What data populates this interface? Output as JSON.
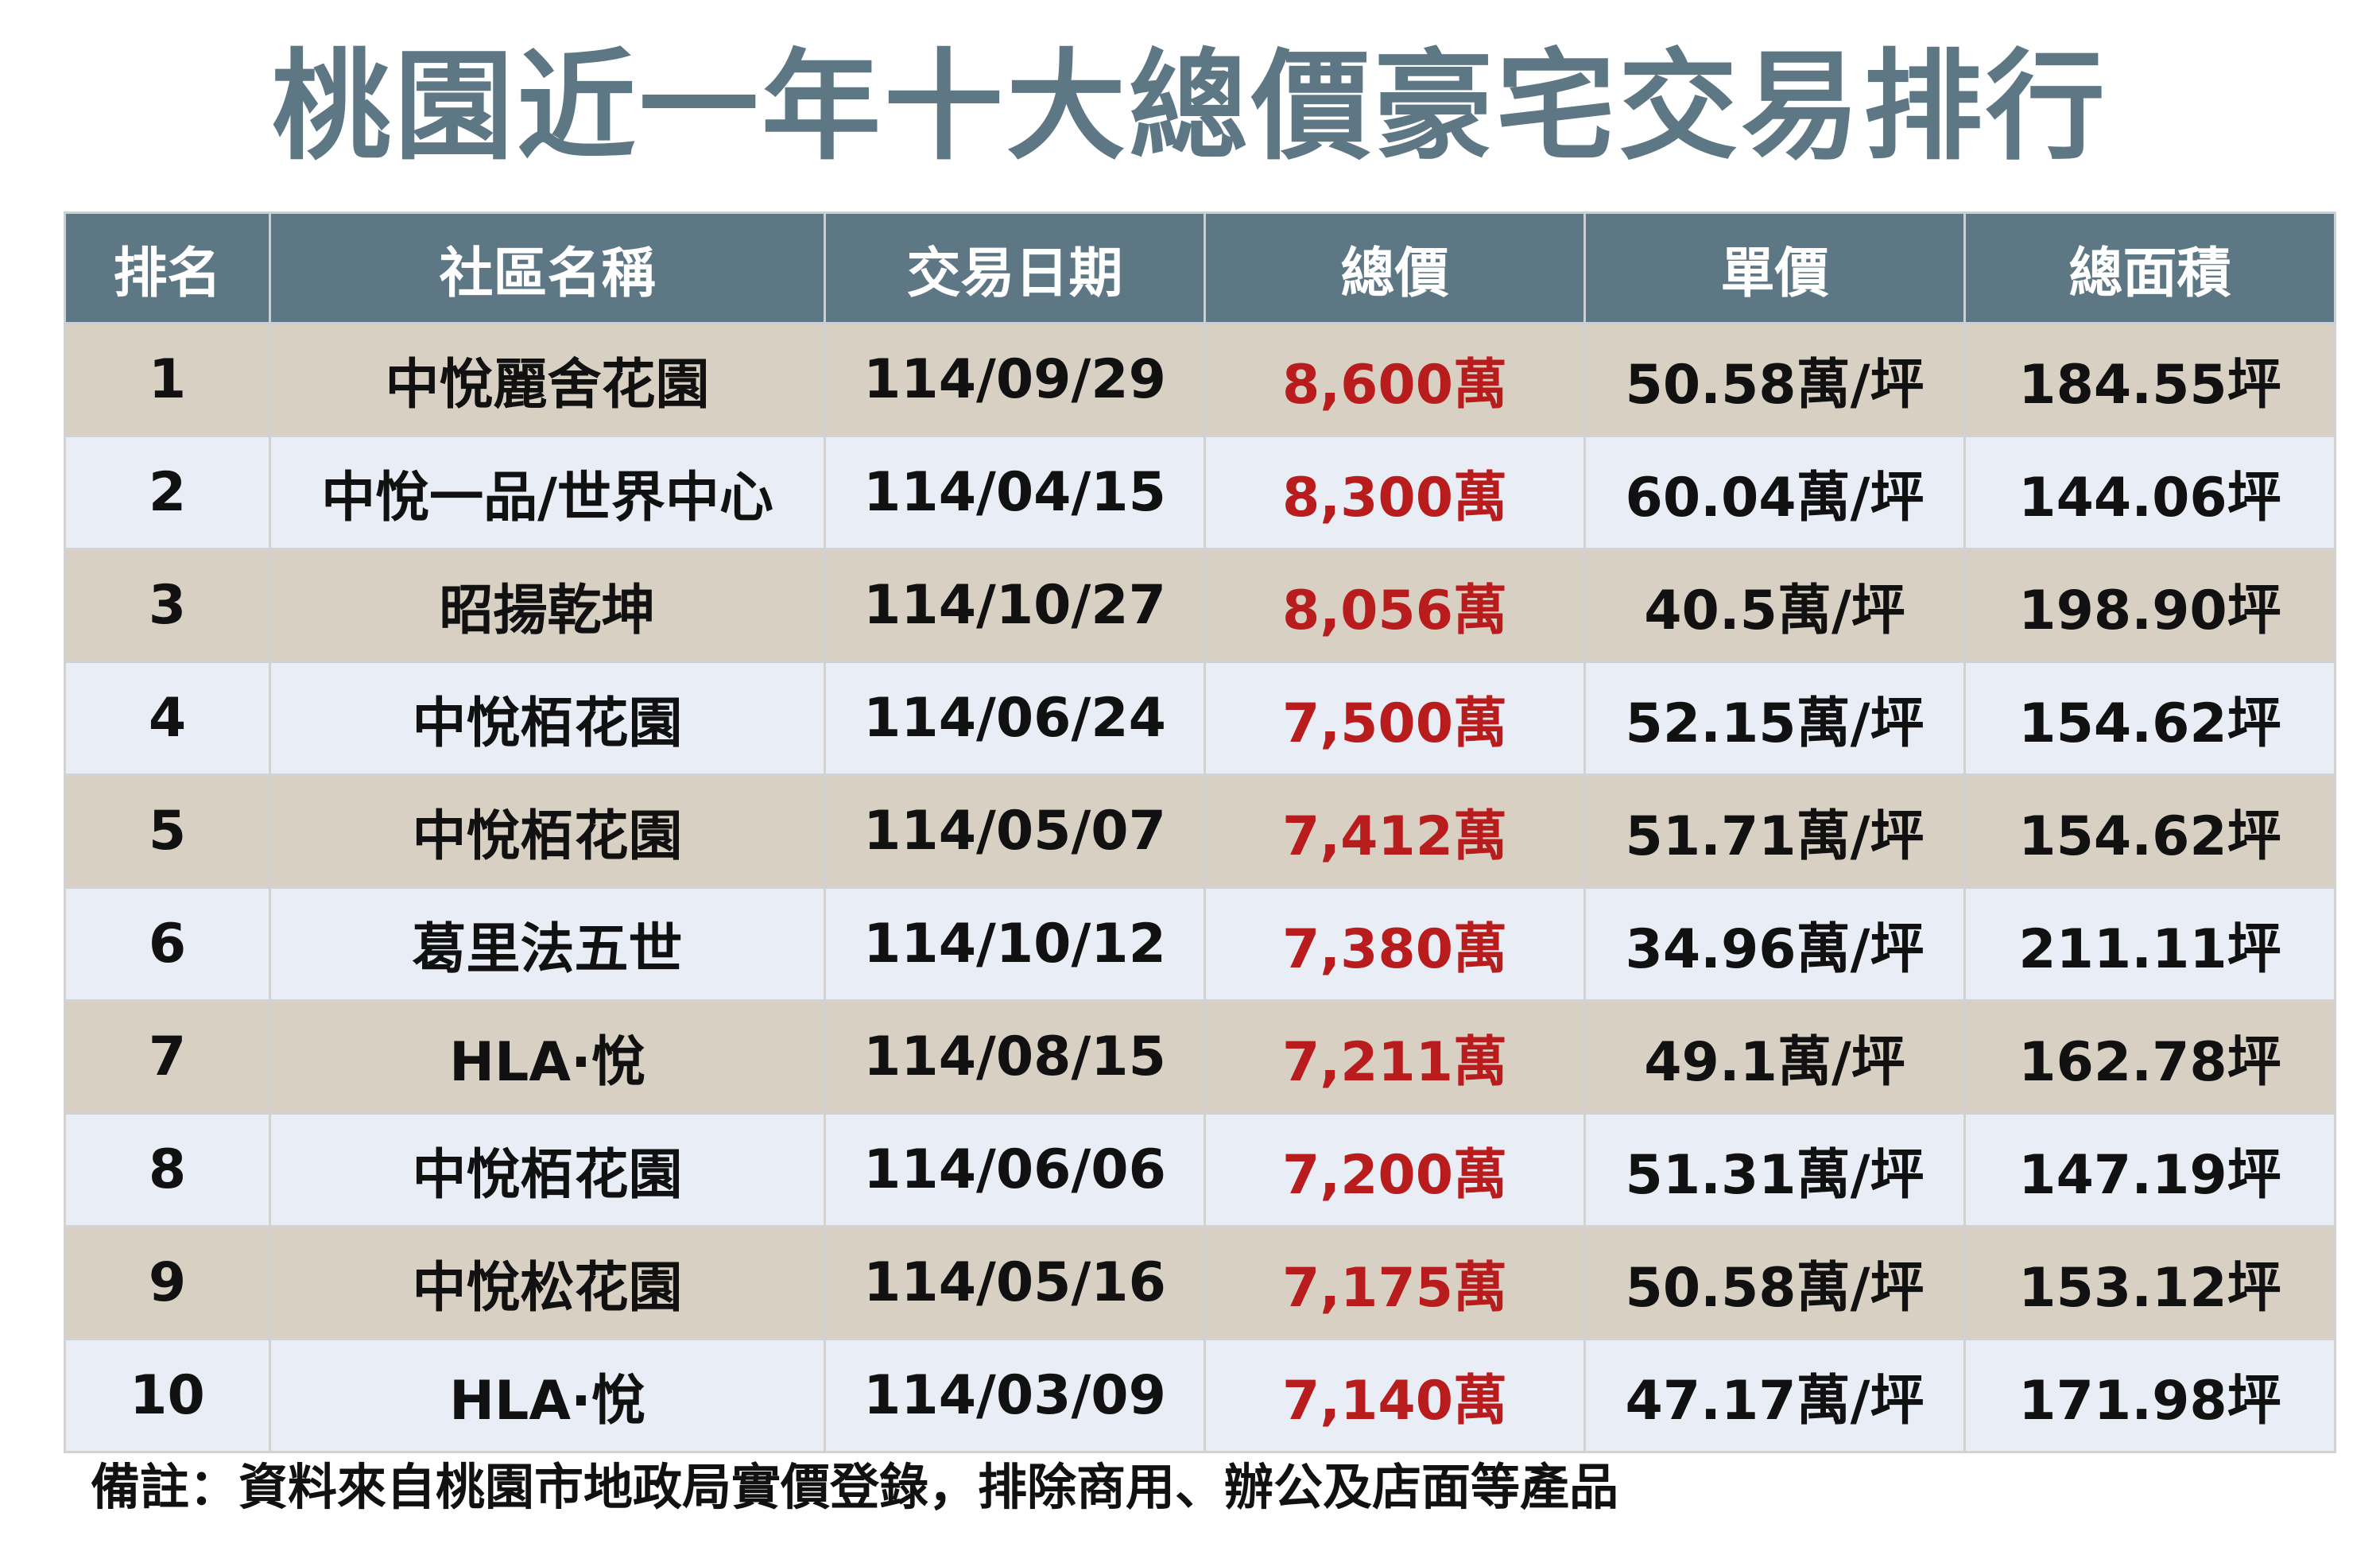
{
  "title": "桃園近一年十大總價豪宅交易排行",
  "colors": {
    "header_bg": "#5e7785",
    "row_odd_bg": "#d8d1c3",
    "row_even_bg": "#e9edf5",
    "price_text": "#b81c1c",
    "title_text": "#5e7785"
  },
  "table": {
    "headers": [
      "排名",
      "社區名稱",
      "交易日期",
      "總價",
      "單價",
      "總面積"
    ],
    "rows": [
      {
        "rank": "1",
        "name": "中悅麗舍花園",
        "date": "114/09/29",
        "total_price": "8,600萬",
        "unit_price": "50.58萬/坪",
        "area": "184.55坪"
      },
      {
        "rank": "2",
        "name": "中悅一品/世界中心",
        "date": "114/04/15",
        "total_price": "8,300萬",
        "unit_price": "60.04萬/坪",
        "area": "144.06坪"
      },
      {
        "rank": "3",
        "name": "昭揚乾坤",
        "date": "114/10/27",
        "total_price": "8,056萬",
        "unit_price": "40.5萬/坪",
        "area": "198.90坪"
      },
      {
        "rank": "4",
        "name": "中悅栢花園",
        "date": "114/06/24",
        "total_price": "7,500萬",
        "unit_price": "52.15萬/坪",
        "area": "154.62坪"
      },
      {
        "rank": "5",
        "name": "中悅栢花園",
        "date": "114/05/07",
        "total_price": "7,412萬",
        "unit_price": "51.71萬/坪",
        "area": "154.62坪"
      },
      {
        "rank": "6",
        "name": "葛里法五世",
        "date": "114/10/12",
        "total_price": "7,380萬",
        "unit_price": "34.96萬/坪",
        "area": "211.11坪"
      },
      {
        "rank": "7",
        "name": "HLA·悅",
        "date": "114/08/15",
        "total_price": "7,211萬",
        "unit_price": "49.1萬/坪",
        "area": "162.78坪"
      },
      {
        "rank": "8",
        "name": "中悅栢花園",
        "date": "114/06/06",
        "total_price": "7,200萬",
        "unit_price": "51.31萬/坪",
        "area": "147.19坪"
      },
      {
        "rank": "9",
        "name": "中悅松花園",
        "date": "114/05/16",
        "total_price": "7,175萬",
        "unit_price": "50.58萬/坪",
        "area": "153.12坪"
      },
      {
        "rank": "10",
        "name": "HLA·悅",
        "date": "114/03/09",
        "total_price": "7,140萬",
        "unit_price": "47.17萬/坪",
        "area": "171.98坪"
      }
    ]
  },
  "footnote": "備註：資料來自桃園市地政局實價登錄，排除商用、辦公及店面等產品"
}
